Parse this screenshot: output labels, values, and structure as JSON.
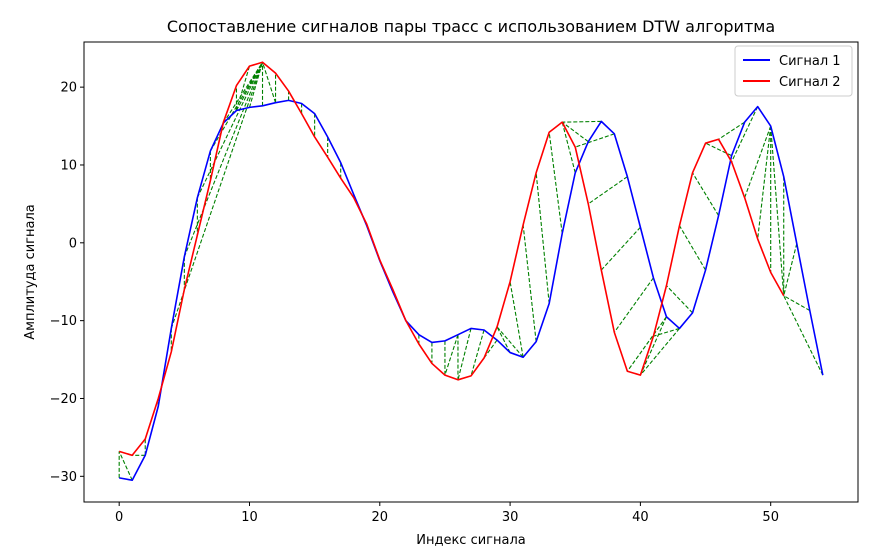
{
  "chart_data": {
    "type": "line",
    "title": "Сопоставление сигналов пары трасс с использованием DTW алгоритма",
    "xlabel": "Индекс сигнала",
    "ylabel": "Амплитуда сигнала",
    "xlim": [
      -2.7,
      56.7
    ],
    "ylim": [
      -33.3,
      25.8
    ],
    "xticks": [
      0,
      10,
      20,
      30,
      40,
      50
    ],
    "yticks": [
      -30,
      -20,
      -10,
      0,
      10,
      20
    ],
    "grid": false,
    "legend_position": "top-right",
    "series": [
      {
        "name": "Сигнал 1",
        "color": "#0000ff",
        "values": [
          -30.2,
          -30.5,
          -27.3,
          -21.0,
          -11.0,
          -1.8,
          5.8,
          11.8,
          15.4,
          17.0,
          17.4,
          17.6,
          18.0,
          18.3,
          17.9,
          16.6,
          13.6,
          10.3,
          6.2,
          2.2,
          -2.3,
          -6.3,
          -10.0,
          -11.8,
          -12.8,
          -12.6,
          -11.8,
          -11.0,
          -11.2,
          -12.5,
          -14.1,
          -14.7,
          -12.7,
          -7.8,
          1.2,
          9.0,
          13.0,
          15.6,
          14.0,
          8.5,
          2.0,
          -4.5,
          -9.5,
          -11.0,
          -9.0,
          -3.5,
          3.5,
          11.2,
          15.5,
          17.5,
          15.0,
          8.5,
          -0.1,
          -8.7,
          -17.0
        ]
      },
      {
        "name": "Сигнал 2",
        "color": "#ff0000",
        "values": [
          -26.8,
          -27.3,
          -25.2,
          -20.0,
          -14.0,
          -6.0,
          1.0,
          8.0,
          15.5,
          20.2,
          22.7,
          23.2,
          21.8,
          19.5,
          16.6,
          13.6,
          11.0,
          8.3,
          5.8,
          2.4,
          -2.2,
          -6.0,
          -10.0,
          -13.0,
          -15.5,
          -17.0,
          -17.6,
          -17.1,
          -14.8,
          -10.8,
          -5.0,
          2.3,
          9.0,
          14.2,
          15.5,
          12.3,
          5.0,
          -3.5,
          -11.5,
          -16.5,
          -17.0,
          -12.0,
          -5.5,
          2.2,
          9.0,
          12.8,
          13.3,
          10.4,
          5.8,
          0.5,
          -3.8,
          -6.8
        ]
      }
    ],
    "alignment": {
      "style": "dashed",
      "color": "#008000",
      "pairs": [
        [
          0,
          0
        ],
        [
          1,
          0
        ],
        [
          2,
          1
        ],
        [
          2,
          2
        ],
        [
          3,
          3
        ],
        [
          4,
          4
        ],
        [
          5,
          5
        ],
        [
          6,
          6
        ],
        [
          7,
          7
        ],
        [
          8,
          8
        ],
        [
          9,
          9
        ],
        [
          9,
          10
        ],
        [
          9,
          11
        ],
        [
          8,
          11
        ],
        [
          7,
          11
        ],
        [
          6,
          11
        ],
        [
          5,
          11
        ],
        [
          4,
          11
        ],
        [
          10,
          11
        ],
        [
          11,
          11
        ],
        [
          12,
          11
        ],
        [
          12,
          12
        ],
        [
          13,
          13
        ],
        [
          14,
          14
        ],
        [
          15,
          15
        ],
        [
          16,
          16
        ],
        [
          17,
          17
        ],
        [
          18,
          18
        ],
        [
          19,
          19
        ],
        [
          20,
          20
        ],
        [
          21,
          21
        ],
        [
          22,
          22
        ],
        [
          23,
          23
        ],
        [
          24,
          24
        ],
        [
          25,
          25
        ],
        [
          26,
          26
        ],
        [
          26,
          25
        ],
        [
          27,
          26
        ],
        [
          28,
          27
        ],
        [
          29,
          28
        ],
        [
          30,
          29
        ],
        [
          31,
          29
        ],
        [
          31,
          30
        ],
        [
          32,
          31
        ],
        [
          33,
          32
        ],
        [
          34,
          33
        ],
        [
          35,
          34
        ],
        [
          36,
          34
        ],
        [
          37,
          34
        ],
        [
          38,
          35
        ],
        [
          39,
          36
        ],
        [
          40,
          37
        ],
        [
          41,
          38
        ],
        [
          42,
          39
        ],
        [
          42,
          40
        ],
        [
          43,
          40
        ],
        [
          43,
          41
        ],
        [
          44,
          42
        ],
        [
          45,
          43
        ],
        [
          46,
          44
        ],
        [
          47,
          45
        ],
        [
          48,
          46
        ],
        [
          49,
          47
        ],
        [
          50,
          48
        ],
        [
          50,
          49
        ],
        [
          50,
          50
        ],
        [
          50,
          51
        ],
        [
          51,
          51
        ],
        [
          52,
          51
        ],
        [
          53,
          51
        ],
        [
          54,
          51
        ]
      ]
    }
  }
}
